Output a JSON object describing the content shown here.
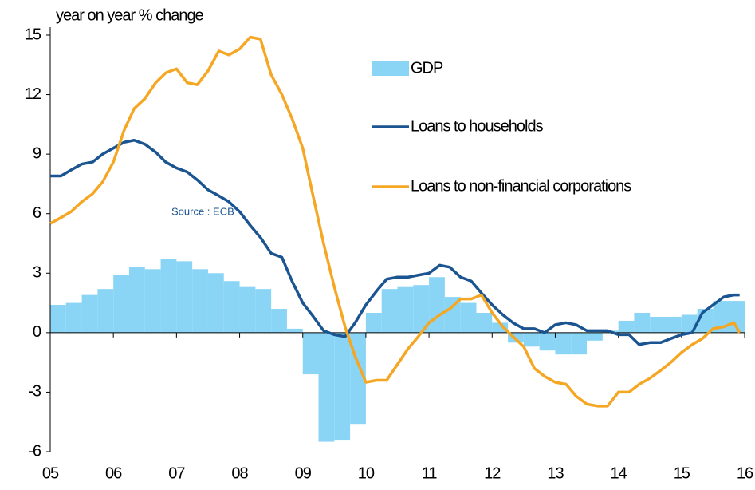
{
  "chart_data": {
    "type": "bar-line",
    "y_label": "year on year % change",
    "annotation": "Source : ECB",
    "xlim": [
      5,
      16
    ],
    "xticks": [
      {
        "value": 5,
        "label": "05"
      },
      {
        "value": 6,
        "label": "06"
      },
      {
        "value": 7,
        "label": "07"
      },
      {
        "value": 8,
        "label": "08"
      },
      {
        "value": 9,
        "label": "09"
      },
      10,
      11,
      12,
      13,
      14,
      15,
      16
    ],
    "ylim": [
      -6,
      15
    ],
    "yticks": [
      -6,
      -3,
      0,
      3,
      6,
      9,
      12,
      15
    ],
    "series": [
      {
        "name": "GDP",
        "type": "bar",
        "color": "#8ad5f5",
        "x": [
          5,
          5.25,
          5.5,
          5.75,
          6,
          6.25,
          6.5,
          6.75,
          7,
          7.25,
          7.5,
          7.75,
          8,
          8.25,
          8.5,
          8.75,
          9,
          9.25,
          9.5,
          9.75,
          10,
          10.25,
          10.5,
          10.75,
          11,
          11.25,
          11.5,
          11.75,
          12,
          12.25,
          12.5,
          12.75,
          13,
          13.25,
          13.5,
          13.75,
          14,
          14.25,
          14.5,
          14.75,
          15,
          15.25,
          15.5,
          15.75
        ],
        "values": [
          1.4,
          1.5,
          1.9,
          2.2,
          2.9,
          3.3,
          3.2,
          3.7,
          3.6,
          3.2,
          3.0,
          2.6,
          2.3,
          2.2,
          1.2,
          0.2,
          -2.1,
          -5.5,
          -5.4,
          -4.6,
          1.0,
          2.2,
          2.3,
          2.4,
          2.8,
          1.8,
          1.5,
          1.0,
          0.5,
          -0.5,
          -0.7,
          -0.9,
          -1.1,
          -1.1,
          -0.4,
          0.1,
          0.6,
          1.0,
          0.8,
          0.8,
          0.9,
          1.2,
          1.6,
          1.6
        ]
      },
      {
        "name": "Loans to households",
        "type": "line",
        "color": "#1b5591",
        "x": [
          5,
          5.17,
          5.33,
          5.5,
          5.67,
          5.83,
          6,
          6.17,
          6.33,
          6.5,
          6.67,
          6.83,
          7,
          7.17,
          7.33,
          7.5,
          7.67,
          7.83,
          8,
          8.17,
          8.33,
          8.5,
          8.67,
          8.83,
          9,
          9.17,
          9.33,
          9.5,
          9.67,
          9.83,
          10,
          10.17,
          10.33,
          10.5,
          10.67,
          10.83,
          11,
          11.17,
          11.33,
          11.5,
          11.67,
          11.83,
          12,
          12.17,
          12.33,
          12.5,
          12.67,
          12.83,
          13,
          13.17,
          13.33,
          13.5,
          13.67,
          13.83,
          14,
          14.17,
          14.33,
          14.5,
          14.67,
          14.83,
          15,
          15.17,
          15.33,
          15.5,
          15.67,
          15.83,
          15.92
        ],
        "values": [
          7.9,
          7.9,
          8.2,
          8.5,
          8.6,
          9.0,
          9.3,
          9.6,
          9.7,
          9.5,
          9.1,
          8.6,
          8.3,
          8.1,
          7.7,
          7.2,
          6.9,
          6.6,
          6.1,
          5.4,
          4.8,
          4.0,
          3.8,
          2.6,
          1.5,
          0.8,
          0.1,
          -0.1,
          -0.2,
          0.5,
          1.4,
          2.1,
          2.7,
          2.8,
          2.8,
          2.9,
          3.0,
          3.4,
          3.3,
          2.8,
          2.6,
          2.0,
          1.4,
          0.9,
          0.5,
          0.2,
          0.2,
          0.0,
          0.4,
          0.5,
          0.4,
          0.1,
          0.1,
          0.1,
          -0.1,
          -0.1,
          -0.6,
          -0.5,
          -0.5,
          -0.3,
          -0.1,
          0.0,
          1.0,
          1.4,
          1.8,
          1.9,
          1.9
        ]
      },
      {
        "name": "Loans to non-financial corporations",
        "type": "line",
        "color": "#f5a623",
        "x": [
          5,
          5.17,
          5.33,
          5.5,
          5.67,
          5.83,
          6,
          6.17,
          6.33,
          6.5,
          6.67,
          6.83,
          7,
          7.17,
          7.33,
          7.5,
          7.67,
          7.83,
          8,
          8.17,
          8.33,
          8.5,
          8.67,
          8.83,
          9,
          9.17,
          9.33,
          9.5,
          9.67,
          9.83,
          10,
          10.17,
          10.33,
          10.5,
          10.67,
          10.83,
          11,
          11.17,
          11.33,
          11.5,
          11.67,
          11.83,
          12,
          12.17,
          12.33,
          12.5,
          12.67,
          12.83,
          13,
          13.17,
          13.33,
          13.5,
          13.67,
          13.83,
          14,
          14.17,
          14.33,
          14.5,
          14.67,
          14.83,
          15,
          15.17,
          15.33,
          15.5,
          15.67,
          15.83,
          15.92
        ],
        "values": [
          5.5,
          5.8,
          6.1,
          6.6,
          7.0,
          7.6,
          8.6,
          10.2,
          11.3,
          11.8,
          12.6,
          13.1,
          13.3,
          12.6,
          12.5,
          13.2,
          14.2,
          14.0,
          14.3,
          14.9,
          14.8,
          13.0,
          12.0,
          10.8,
          9.3,
          6.8,
          4.5,
          2.3,
          0.3,
          -1.2,
          -2.5,
          -2.4,
          -2.4,
          -1.6,
          -0.8,
          -0.2,
          0.5,
          0.9,
          1.2,
          1.7,
          1.7,
          1.9,
          1.0,
          0.3,
          -0.2,
          -0.7,
          -1.8,
          -2.2,
          -2.5,
          -2.6,
          -3.2,
          -3.6,
          -3.7,
          -3.7,
          -3.0,
          -3.0,
          -2.6,
          -2.3,
          -1.9,
          -1.5,
          -1.0,
          -0.6,
          -0.3,
          0.2,
          0.3,
          0.5,
          0.0
        ]
      }
    ]
  }
}
